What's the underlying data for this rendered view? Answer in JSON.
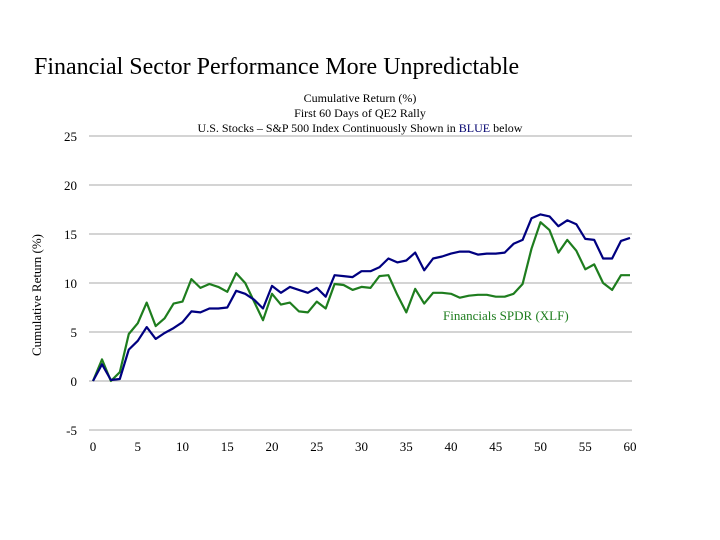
{
  "page_title": "Financial Sector Performance More Unpredictable",
  "chart_data": {
    "type": "line",
    "title_lines": [
      "Cumulative Return (%)",
      "First 60 Days of QE2 Rally"
    ],
    "subtitle_line3": {
      "before": "U.S. Stocks – S&P 500 Index Continuously Shown in ",
      "highlight": "BLUE",
      "after": " below"
    },
    "xlabel": "",
    "ylabel": "Cumulative Return (%)",
    "xlim": [
      0,
      60
    ],
    "ylim": [
      -5,
      25
    ],
    "yticks": [
      25,
      20,
      15,
      10,
      5,
      0,
      -5
    ],
    "xticks": [
      0,
      5,
      10,
      15,
      20,
      25,
      30,
      35,
      40,
      45,
      50,
      55,
      60
    ],
    "grid": "horizontal",
    "series": [
      {
        "name": "",
        "color": "#000080",
        "x": [
          0,
          1,
          2,
          3,
          4,
          5,
          6,
          7,
          8,
          9,
          10,
          11,
          12,
          13,
          14,
          15,
          16,
          17,
          18,
          19,
          20,
          21,
          22,
          23,
          24,
          25,
          26,
          27,
          28,
          29,
          30,
          31,
          32,
          33,
          34,
          35,
          36,
          37,
          38,
          39,
          40,
          41,
          42,
          43,
          44,
          45,
          46,
          47,
          48,
          49,
          50,
          51,
          52,
          53,
          54,
          55,
          56,
          57,
          58,
          59,
          60
        ],
        "values": [
          0,
          1.7,
          0.1,
          0.2,
          3.2,
          4.1,
          5.5,
          4.3,
          4.9,
          5.4,
          6.0,
          7.1,
          7.0,
          7.4,
          7.4,
          7.5,
          9.2,
          8.9,
          8.3,
          7.4,
          9.7,
          9.0,
          9.6,
          9.3,
          9.0,
          9.5,
          8.6,
          10.8,
          10.7,
          10.6,
          11.2,
          11.2,
          11.6,
          12.5,
          12.1,
          12.3,
          13.1,
          11.3,
          12.5,
          12.7,
          13.0,
          13.2,
          13.2,
          12.9,
          13.0,
          13.0,
          13.1,
          14.0,
          14.4,
          16.6,
          17.0,
          16.8,
          15.8,
          16.4,
          16.0,
          14.5,
          14.4,
          12.5,
          12.5,
          14.3,
          14.6
        ]
      },
      {
        "name": "Financials SPDR (XLF)",
        "color": "#1e7d1e",
        "x": [
          0,
          1,
          2,
          3,
          4,
          5,
          6,
          7,
          8,
          9,
          10,
          11,
          12,
          13,
          14,
          15,
          16,
          17,
          18,
          19,
          20,
          21,
          22,
          23,
          24,
          25,
          26,
          27,
          28,
          29,
          30,
          31,
          32,
          33,
          34,
          35,
          36,
          37,
          38,
          39,
          40,
          41,
          42,
          43,
          44,
          45,
          46,
          47,
          48,
          49,
          50,
          51,
          52,
          53,
          54,
          55,
          56,
          57,
          58,
          59,
          60
        ],
        "values": [
          0,
          2.2,
          0,
          0.9,
          4.8,
          5.9,
          8.0,
          5.6,
          6.4,
          7.9,
          8.1,
          10.4,
          9.5,
          9.9,
          9.6,
          9.1,
          11.0,
          10.0,
          8.1,
          6.2,
          8.9,
          7.8,
          8.0,
          7.1,
          7.0,
          8.1,
          7.4,
          9.9,
          9.8,
          9.3,
          9.6,
          9.5,
          10.7,
          10.8,
          8.8,
          7.0,
          9.4,
          7.9,
          9.0,
          9.0,
          8.9,
          8.5,
          8.7,
          8.8,
          8.8,
          8.6,
          8.6,
          8.9,
          9.9,
          13.5,
          16.2,
          15.4,
          13.1,
          14.4,
          13.3,
          11.4,
          11.9,
          10.0,
          9.3,
          10.8,
          10.8
        ]
      }
    ]
  }
}
